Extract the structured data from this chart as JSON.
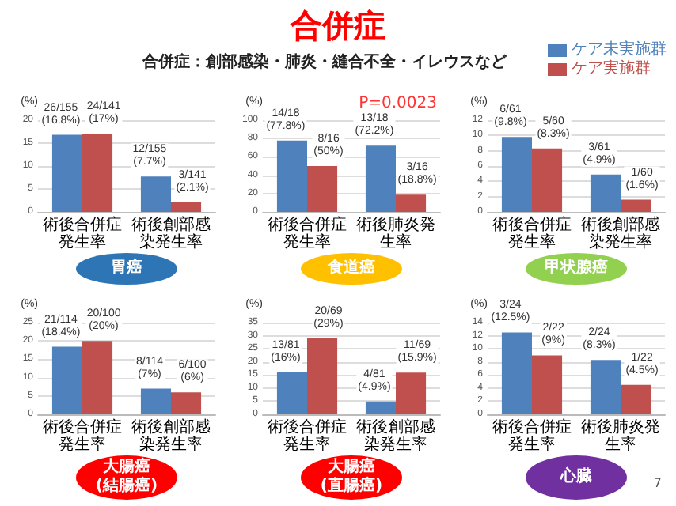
{
  "chart_data": [
    {
      "type": "bar",
      "xlabel": "胃癌",
      "ylabel": "(%)",
      "categories": [
        "術後合併症発生率",
        "術後創部感染発生率"
      ],
      "ylim": [
        0,
        20
      ],
      "yticks": [
        0,
        5,
        10,
        15,
        20
      ],
      "grid": true,
      "legend": "top right",
      "series": [
        {
          "name": "ケア未実施群",
          "color": "#4f81bd",
          "values": [
            16.8,
            7.7
          ],
          "value_labels": [
            "26/155\n(16.8%)",
            "12/155\n(7.7%)"
          ]
        },
        {
          "name": "ケア実施群",
          "color": "#c0504d",
          "values": [
            17,
            2.1
          ],
          "value_labels": [
            "24/141\n(17%)",
            "3/141\n(2.1%)"
          ]
        }
      ]
    },
    {
      "type": "bar",
      "title": "合併症",
      "subtitle": "合併症：創部感染・肺炎・縫合不全・イレウスなど",
      "xlabel": "食道癌",
      "ylabel": "(%)",
      "categories": [
        "術後合併症発生率",
        "術後肺炎発生率"
      ],
      "ylim": [
        0,
        100
      ],
      "yticks": [
        0,
        20,
        40,
        60,
        80,
        100
      ],
      "grid": true,
      "annotations": [
        "P=0.0023"
      ],
      "series": [
        {
          "color": "#4f81bd",
          "values": [
            77.8,
            72.2
          ],
          "value_labels": [
            "14/18\n(77.8%)",
            "13/18\n(72.2%)"
          ]
        },
        {
          "color": "#c0504d",
          "values": [
            50,
            18.8
          ],
          "value_labels": [
            "8/16\n(50%)",
            "3/16\n(18.8%)"
          ]
        }
      ]
    },
    {
      "type": "bar",
      "xlabel": "甲状腺癌",
      "ylabel": "(%)",
      "categories": [
        "術後合併症発生率",
        "術後創部感染発生率"
      ],
      "ylim": [
        0,
        12
      ],
      "yticks": [
        0,
        2,
        4,
        6,
        8,
        10,
        12
      ],
      "grid": true,
      "series": [
        {
          "color": "#4f81bd",
          "values": [
            9.8,
            4.9
          ],
          "value_labels": [
            "6/61\n(9.8%)",
            "3/61\n(4.9%)"
          ]
        },
        {
          "color": "#c0504d",
          "values": [
            8.3,
            1.6
          ],
          "value_labels": [
            "5/60\n(8.3%)",
            "1/60\n(1.6%)"
          ]
        }
      ]
    },
    {
      "type": "bar",
      "xlabel": "大腸癌(結腸癌)",
      "ylabel": "(%)",
      "categories": [
        "術後合併症発生率",
        "術後創部感染発生率"
      ],
      "ylim": [
        0,
        25
      ],
      "yticks": [
        0,
        5,
        10,
        15,
        20,
        25
      ],
      "grid": true,
      "series": [
        {
          "color": "#4f81bd",
          "values": [
            18.4,
            7
          ],
          "value_labels": [
            "21/114\n(18.4%)",
            "8/114\n(7%)"
          ]
        },
        {
          "color": "#c0504d",
          "values": [
            20,
            6
          ],
          "value_labels": [
            "20/100\n(20%)",
            "6/100\n(6%)"
          ]
        }
      ]
    },
    {
      "type": "bar",
      "xlabel": "大腸癌(直腸癌)",
      "ylabel": "(%)",
      "categories": [
        "術後合併症発生率",
        "術後創部感染発生率"
      ],
      "ylim": [
        0,
        35
      ],
      "yticks": [
        0,
        5,
        10,
        15,
        20,
        25,
        30,
        35
      ],
      "grid": true,
      "series": [
        {
          "color": "#4f81bd",
          "values": [
            16,
            4.9
          ],
          "value_labels": [
            "13/81\n(16%)",
            "4/81\n(4.9%)"
          ]
        },
        {
          "color": "#c0504d",
          "values": [
            29,
            15.9
          ],
          "value_labels": [
            "20/69\n(29%)",
            "11/69\n(15.9%)"
          ]
        }
      ]
    },
    {
      "type": "bar",
      "xlabel": "心臓",
      "ylabel": "(%)",
      "categories": [
        "術後合併症発生率",
        "術後肺炎発生率"
      ],
      "ylim": [
        0,
        14
      ],
      "yticks": [
        0,
        2,
        4,
        6,
        8,
        10,
        12,
        14
      ],
      "grid": true,
      "annotations": [
        "7"
      ],
      "series": [
        {
          "color": "#4f81bd",
          "values": [
            12.5,
            8.3
          ],
          "value_labels": [
            "3/24\n(12.5%)",
            "2/24\n(8.3%)"
          ]
        },
        {
          "color": "#c0504d",
          "values": [
            9,
            4.5
          ],
          "value_labels": [
            "2/22\n(9%)",
            "1/22\n(4.5%)"
          ]
        }
      ]
    }
  ]
}
